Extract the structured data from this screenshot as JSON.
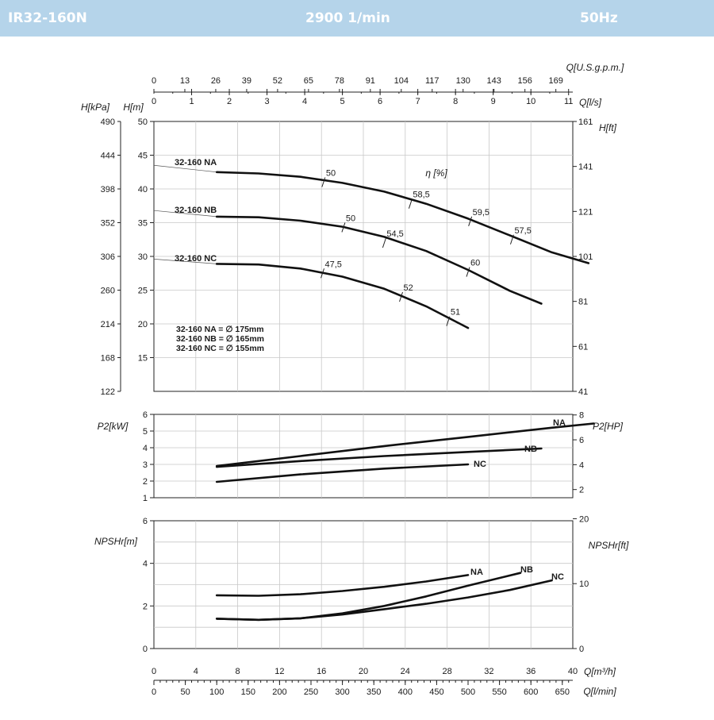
{
  "header": {
    "model": "IR32-160N",
    "speed": "2900 1/min",
    "frequency": "50Hz"
  },
  "colors": {
    "banner": "#b5d4ea",
    "banner_text": "#ffffff",
    "curve": "#111111",
    "grid": "#c8c8c8"
  },
  "chart_data": [
    {
      "type": "line",
      "id": "head",
      "axes": {
        "q_m3h": {
          "label": "Q[m³/h]",
          "lim": [
            0,
            40
          ],
          "ticks": [
            "0",
            "4",
            "8",
            "12",
            "16",
            "20",
            "24",
            "28",
            "32",
            "36",
            "40"
          ]
        },
        "q_lmin": {
          "label": "Q[l/min]",
          "ticks": [
            "0",
            "50",
            "100",
            "150",
            "200",
            "250",
            "300",
            "350",
            "400",
            "450",
            "500",
            "550",
            "600",
            "650"
          ]
        },
        "q_usgpm": {
          "label": "Q[U.S.g.p.m.]",
          "ticks": [
            "0",
            "13",
            "26",
            "39",
            "52",
            "65",
            "78",
            "91",
            "104",
            "117",
            "130",
            "143",
            "156",
            "169"
          ]
        },
        "q_ls": {
          "label": "Q[l/s]",
          "ticks": [
            "0",
            "1",
            "2",
            "3",
            "4",
            "5",
            "6",
            "7",
            "8",
            "9",
            "10",
            "11"
          ]
        },
        "h_m": {
          "label": "H[m]",
          "lim": [
            10,
            50
          ],
          "ticks": [
            "15",
            "20",
            "25",
            "30",
            "35",
            "40",
            "45",
            "50"
          ]
        },
        "h_kpa": {
          "label": "H[kPa]",
          "ticks": [
            "122",
            "168",
            "214",
            "260",
            "306",
            "352",
            "398",
            "444",
            "490"
          ]
        },
        "h_ft": {
          "label": "H[ft]",
          "ticks": [
            "41",
            "61",
            "81",
            "101",
            "121",
            "141",
            "161"
          ]
        }
      },
      "efficiency_label": "η [%]",
      "series": [
        {
          "name": "32-160 NA",
          "x": [
            6,
            10,
            14,
            18,
            22,
            26,
            30,
            34,
            38,
            41.5
          ],
          "y": [
            42.5,
            42.3,
            41.8,
            40.9,
            39.6,
            37.8,
            35.6,
            33.1,
            30.6,
            29.0
          ]
        },
        {
          "name": "32-160 NB",
          "x": [
            6,
            10,
            14,
            18,
            22,
            26,
            30,
            34,
            37
          ],
          "y": [
            35.9,
            35.8,
            35.3,
            34.4,
            32.9,
            30.8,
            28.0,
            24.9,
            23.0
          ]
        },
        {
          "name": "32-160 NC",
          "x": [
            6,
            10,
            14,
            18,
            22,
            26,
            30
          ],
          "y": [
            28.9,
            28.8,
            28.2,
            27.0,
            25.2,
            22.6,
            19.4
          ]
        }
      ],
      "efficiency_marks": [
        {
          "x": 16.2,
          "y": 41.0,
          "label": "50"
        },
        {
          "x": 24.5,
          "y": 37.8,
          "label": "58,5"
        },
        {
          "x": 30.2,
          "y": 35.2,
          "label": "59,5"
        },
        {
          "x": 34.2,
          "y": 32.5,
          "label": "57,5"
        },
        {
          "x": 18.1,
          "y": 34.3,
          "label": "50"
        },
        {
          "x": 22.0,
          "y": 32.0,
          "label": "54,5"
        },
        {
          "x": 30.0,
          "y": 27.7,
          "label": "60"
        },
        {
          "x": 16.1,
          "y": 27.5,
          "label": "47,5"
        },
        {
          "x": 23.6,
          "y": 24.0,
          "label": "52"
        },
        {
          "x": 28.1,
          "y": 20.4,
          "label": "51"
        }
      ],
      "impeller_notes": [
        "32-160 NA = ∅ 175mm",
        "32-160 NB = ∅ 165mm",
        "32-160 NC = ∅ 155mm"
      ],
      "grid": true
    },
    {
      "type": "line",
      "id": "power",
      "axes": {
        "p_kw": {
          "label": "P2[kW]",
          "lim": [
            1,
            6
          ],
          "ticks": [
            "1",
            "2",
            "3",
            "4",
            "5",
            "6"
          ]
        },
        "p_hp": {
          "label": "P2[HP]",
          "ticks": [
            "2",
            "4",
            "6",
            "8"
          ]
        }
      },
      "series": [
        {
          "name": "NA",
          "x": [
            6,
            14,
            22,
            30,
            38,
            42
          ],
          "y": [
            2.9,
            3.5,
            4.1,
            4.65,
            5.2,
            5.45
          ]
        },
        {
          "name": "NB",
          "x": [
            6,
            14,
            22,
            30,
            37
          ],
          "y": [
            2.85,
            3.2,
            3.5,
            3.75,
            3.95
          ]
        },
        {
          "name": "NC",
          "x": [
            6,
            14,
            22,
            30
          ],
          "y": [
            1.95,
            2.4,
            2.75,
            3.0
          ]
        }
      ],
      "grid": true
    },
    {
      "type": "line",
      "id": "npsh",
      "axes": {
        "npsh_m": {
          "label": "NPSHr[m]",
          "lim": [
            0,
            6
          ],
          "ticks": [
            "0",
            "2",
            "4",
            "6"
          ]
        },
        "npsh_ft": {
          "label": "NPSHr[ft]",
          "ticks": [
            "0",
            "10",
            "20"
          ]
        }
      },
      "series": [
        {
          "name": "NA",
          "x": [
            6,
            10,
            14,
            18,
            22,
            26,
            30
          ],
          "y": [
            2.5,
            2.48,
            2.55,
            2.7,
            2.9,
            3.15,
            3.45
          ]
        },
        {
          "name": "NB",
          "x": [
            6,
            10,
            14,
            18,
            22,
            26,
            30,
            35
          ],
          "y": [
            1.4,
            1.35,
            1.42,
            1.65,
            2.0,
            2.45,
            2.95,
            3.55
          ]
        },
        {
          "name": "NC",
          "x": [
            6,
            10,
            14,
            18,
            22,
            26,
            30,
            34,
            38
          ],
          "y": [
            1.4,
            1.35,
            1.42,
            1.6,
            1.85,
            2.1,
            2.4,
            2.75,
            3.2
          ]
        }
      ],
      "grid": true
    }
  ]
}
